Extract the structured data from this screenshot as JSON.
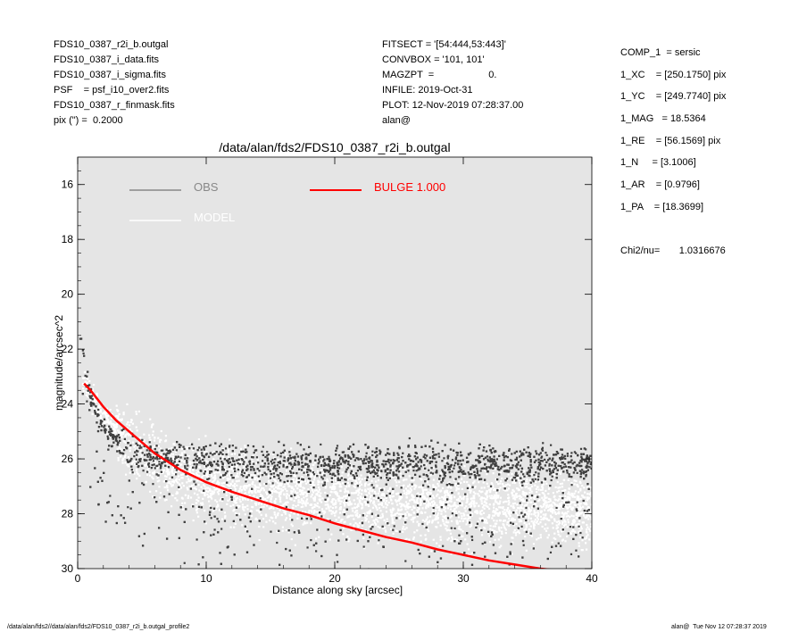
{
  "header_left": [
    "FDS10_0387_r2i_b.outgal",
    "FDS10_0387_i_data.fits",
    "FDS10_0387_i_sigma.fits",
    "PSF    = psf_i10_over2.fits",
    "FDS10_0387_r_finmask.fits",
    "pix (\") =  0.2000"
  ],
  "header_center": [
    "FITSECT = '[54:444,53:443]'",
    "CONVBOX = '101, 101'",
    "MAGZPT  =                    0.",
    "INFILE: 2019-Oct-31",
    "PLOT: 12-Nov-2019 07:28:37.00",
    "alan@"
  ],
  "params": [
    "COMP_1  = sersic",
    "1_XC    = [250.1750] pix",
    "1_YC    = [249.7740] pix",
    "1_MAG   = 18.5364",
    "1_RE    = [56.1569] pix",
    "1_N     = [3.1006]",
    "1_AR    = [0.9796]",
    "1_PA    = [18.3699]"
  ],
  "chi2": "Chi2/nu=       1.0316676",
  "footer_left": "/data/alan/fds2//data/alan/fds2/FDS10_0387_r2i_b.outgal_profile2",
  "footer_right": "alan@  Tue Nov 12 07:28:37 2019",
  "colors": {
    "plot_bg": "#e5e5e5",
    "obs": "#404040",
    "model": "#ffffff",
    "bulge": "#ff0000",
    "legend_obs": "#888888"
  },
  "chart_data": {
    "type": "scatter",
    "title": "/data/alan/fds2/FDS10_0387_r2i_b.outgal",
    "xlabel": "Distance along sky [arcsec]",
    "ylabel": "magnitude/arcsec^2",
    "xlim": [
      0,
      40
    ],
    "ylim": [
      30,
      15
    ],
    "y_inverted": true,
    "x_ticks": [
      0,
      10,
      20,
      30,
      40
    ],
    "y_ticks": [
      16,
      18,
      20,
      22,
      24,
      26,
      28,
      30
    ],
    "grid": false,
    "legend": [
      {
        "name": "OBS",
        "style": "line",
        "color": "#888888"
      },
      {
        "name": "MODEL",
        "style": "line",
        "color": "#ffffff"
      },
      {
        "name": "BULGE  1.000",
        "style": "line",
        "color": "#ff0000"
      }
    ],
    "series": [
      {
        "name": "OBS",
        "kind": "points",
        "color": "#404040",
        "points": [
          [
            0.2,
            21.6
          ],
          [
            0.4,
            22.1
          ],
          [
            0.5,
            22.5
          ],
          [
            0.7,
            23.0
          ],
          [
            0.9,
            23.4
          ],
          [
            1.0,
            23.8
          ],
          [
            1.3,
            24.2
          ],
          [
            1.5,
            24.5
          ],
          [
            1.8,
            24.7
          ],
          [
            2.0,
            24.9
          ],
          [
            2.5,
            25.1
          ],
          [
            3.0,
            25.3
          ],
          [
            3.5,
            25.5
          ],
          [
            4.0,
            25.6
          ],
          [
            5.0,
            25.8
          ],
          [
            6.0,
            25.9
          ],
          [
            8.0,
            26.0
          ],
          [
            10.0,
            26.1
          ],
          [
            12.0,
            26.1
          ],
          [
            15.0,
            26.2
          ],
          [
            18.0,
            26.2
          ],
          [
            20.0,
            26.2
          ],
          [
            25.0,
            26.2
          ],
          [
            30.0,
            26.2
          ],
          [
            35.0,
            26.2
          ],
          [
            40.0,
            26.2
          ]
        ]
      },
      {
        "name": "MODEL",
        "kind": "points",
        "color": "#ffffff",
        "points": [
          [
            0.5,
            23.3
          ],
          [
            1.0,
            23.7
          ],
          [
            2.0,
            24.4
          ],
          [
            3.0,
            25.0
          ],
          [
            4.0,
            25.5
          ],
          [
            6.0,
            26.1
          ],
          [
            8.0,
            26.5
          ],
          [
            10.0,
            26.8
          ],
          [
            15.0,
            27.2
          ],
          [
            20.0,
            27.4
          ],
          [
            25.0,
            27.6
          ],
          [
            30.0,
            27.7
          ],
          [
            35.0,
            27.8
          ],
          [
            40.0,
            27.9
          ]
        ]
      },
      {
        "name": "BULGE  1.000",
        "kind": "line",
        "color": "#ff0000",
        "points": [
          [
            0.5,
            23.25
          ],
          [
            1.0,
            23.5
          ],
          [
            2.0,
            24.1
          ],
          [
            3.0,
            24.6
          ],
          [
            4.0,
            25.0
          ],
          [
            5.0,
            25.4
          ],
          [
            6.0,
            25.8
          ],
          [
            7.0,
            26.1
          ],
          [
            8.0,
            26.4
          ],
          [
            10.0,
            26.85
          ],
          [
            12.0,
            27.2
          ],
          [
            14.0,
            27.5
          ],
          [
            16.0,
            27.8
          ],
          [
            18.0,
            28.05
          ],
          [
            20.0,
            28.35
          ],
          [
            22.0,
            28.6
          ],
          [
            24.0,
            28.85
          ],
          [
            26.0,
            29.05
          ],
          [
            28.0,
            29.3
          ],
          [
            30.0,
            29.5
          ],
          [
            32.0,
            29.7
          ],
          [
            34.0,
            29.85
          ],
          [
            36.0,
            30.0
          ],
          [
            37.0,
            30.05
          ]
        ]
      }
    ]
  }
}
